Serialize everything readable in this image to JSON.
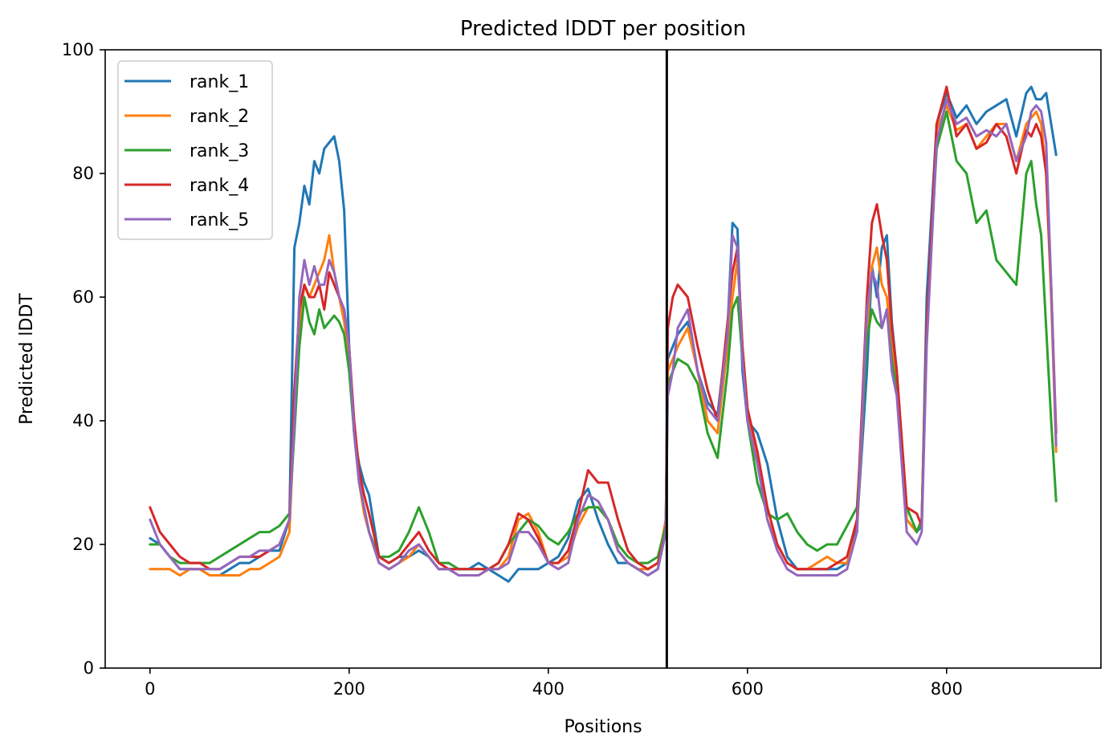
{
  "chart_data": {
    "type": "line",
    "title": "Predicted lDDT per position",
    "xlabel": "Positions",
    "ylabel": "Predicted lDDT",
    "xlim": [
      -45,
      955
    ],
    "ylim": [
      0,
      100
    ],
    "xticks": [
      0,
      200,
      400,
      600,
      800
    ],
    "yticks": [
      0,
      20,
      40,
      60,
      80,
      100
    ],
    "grid": false,
    "legend_position": "upper-left",
    "vertical_line_x": 519,
    "series": [
      {
        "name": "rank_1",
        "color": "#1f77b4",
        "x": [
          0,
          10,
          20,
          30,
          40,
          50,
          60,
          70,
          80,
          90,
          100,
          110,
          120,
          130,
          140,
          145,
          150,
          155,
          160,
          165,
          170,
          175,
          180,
          185,
          190,
          195,
          200,
          205,
          210,
          215,
          220,
          230,
          240,
          250,
          260,
          270,
          280,
          290,
          300,
          310,
          320,
          330,
          340,
          350,
          360,
          370,
          380,
          390,
          400,
          410,
          420,
          430,
          440,
          450,
          460,
          470,
          480,
          490,
          500,
          510,
          518,
          520,
          525,
          530,
          540,
          550,
          560,
          570,
          580,
          585,
          590,
          595,
          600,
          610,
          620,
          630,
          640,
          650,
          660,
          670,
          680,
          690,
          700,
          710,
          720,
          725,
          730,
          735,
          740,
          745,
          750,
          760,
          770,
          775,
          780,
          790,
          800,
          810,
          820,
          830,
          840,
          850,
          860,
          870,
          880,
          885,
          890,
          895,
          900,
          905,
          910
        ],
        "y": [
          21,
          20,
          18,
          16,
          16,
          16,
          15,
          15,
          16,
          17,
          17,
          18,
          19,
          19,
          24,
          68,
          72,
          78,
          75,
          82,
          80,
          84,
          85,
          86,
          82,
          74,
          52,
          38,
          33,
          30,
          28,
          18,
          17,
          18,
          18,
          19,
          18,
          16,
          16,
          16,
          16,
          17,
          16,
          15,
          14,
          16,
          16,
          16,
          17,
          18,
          21,
          27,
          29,
          24,
          20,
          17,
          17,
          16,
          15,
          16,
          22,
          50,
          52,
          54,
          56,
          48,
          43,
          41,
          55,
          72,
          71,
          48,
          40,
          38,
          33,
          24,
          18,
          16,
          16,
          16,
          16,
          16,
          17,
          23,
          48,
          65,
          60,
          68,
          70,
          56,
          48,
          24,
          22,
          23,
          60,
          88,
          93,
          89,
          91,
          88,
          90,
          91,
          92,
          86,
          93,
          94,
          92,
          92,
          93,
          88,
          83
        ]
      },
      {
        "name": "rank_2",
        "color": "#ff7f0e",
        "x": [
          0,
          10,
          20,
          30,
          40,
          50,
          60,
          70,
          80,
          90,
          100,
          110,
          120,
          130,
          140,
          145,
          150,
          155,
          160,
          165,
          170,
          175,
          180,
          185,
          190,
          195,
          200,
          205,
          210,
          215,
          220,
          230,
          240,
          250,
          260,
          270,
          280,
          290,
          300,
          310,
          320,
          330,
          340,
          350,
          360,
          370,
          380,
          390,
          400,
          410,
          420,
          430,
          440,
          450,
          460,
          470,
          480,
          490,
          500,
          510,
          518,
          520,
          525,
          530,
          540,
          550,
          560,
          570,
          580,
          585,
          590,
          595,
          600,
          610,
          620,
          630,
          640,
          650,
          660,
          670,
          680,
          690,
          700,
          710,
          720,
          725,
          730,
          735,
          740,
          745,
          750,
          760,
          770,
          775,
          780,
          790,
          800,
          810,
          820,
          830,
          840,
          850,
          860,
          870,
          880,
          885,
          890,
          895,
          900,
          905,
          910
        ],
        "y": [
          16,
          16,
          16,
          15,
          16,
          16,
          15,
          15,
          15,
          15,
          16,
          16,
          17,
          18,
          22,
          40,
          55,
          62,
          60,
          62,
          64,
          66,
          70,
          64,
          60,
          56,
          50,
          40,
          30,
          25,
          22,
          17,
          16,
          17,
          18,
          20,
          18,
          16,
          16,
          15,
          15,
          15,
          16,
          16,
          18,
          24,
          25,
          22,
          17,
          17,
          18,
          23,
          26,
          26,
          24,
          19,
          17,
          16,
          16,
          17,
          24,
          48,
          50,
          52,
          55,
          48,
          40,
          38,
          52,
          60,
          66,
          52,
          42,
          34,
          24,
          20,
          17,
          16,
          16,
          17,
          18,
          17,
          17,
          22,
          55,
          65,
          68,
          62,
          60,
          52,
          46,
          24,
          22,
          24,
          55,
          87,
          91,
          87,
          88,
          84,
          86,
          88,
          88,
          82,
          88,
          89,
          90,
          88,
          80,
          60,
          35
        ]
      },
      {
        "name": "rank_3",
        "color": "#2ca02c",
        "x": [
          0,
          10,
          20,
          30,
          40,
          50,
          60,
          70,
          80,
          90,
          100,
          110,
          120,
          130,
          140,
          145,
          150,
          155,
          160,
          165,
          170,
          175,
          180,
          185,
          190,
          195,
          200,
          205,
          210,
          215,
          220,
          230,
          240,
          250,
          260,
          270,
          280,
          290,
          300,
          310,
          320,
          330,
          340,
          350,
          360,
          370,
          380,
          390,
          400,
          410,
          420,
          430,
          440,
          450,
          460,
          470,
          480,
          490,
          500,
          510,
          518,
          520,
          525,
          530,
          540,
          550,
          560,
          570,
          580,
          585,
          590,
          595,
          600,
          610,
          620,
          630,
          640,
          650,
          660,
          670,
          680,
          690,
          700,
          710,
          720,
          725,
          730,
          735,
          740,
          745,
          750,
          760,
          770,
          775,
          780,
          790,
          800,
          810,
          820,
          830,
          840,
          850,
          860,
          870,
          880,
          885,
          890,
          895,
          900,
          905,
          910
        ],
        "y": [
          20,
          20,
          18,
          17,
          17,
          17,
          17,
          18,
          19,
          20,
          21,
          22,
          22,
          23,
          25,
          38,
          52,
          60,
          56,
          54,
          58,
          55,
          56,
          57,
          56,
          54,
          48,
          38,
          30,
          26,
          22,
          18,
          18,
          19,
          22,
          26,
          22,
          17,
          17,
          16,
          16,
          16,
          16,
          17,
          20,
          22,
          24,
          23,
          21,
          20,
          22,
          25,
          26,
          26,
          24,
          20,
          18,
          17,
          17,
          18,
          23,
          46,
          48,
          50,
          49,
          46,
          38,
          34,
          48,
          58,
          60,
          50,
          40,
          30,
          25,
          24,
          25,
          22,
          20,
          19,
          20,
          20,
          23,
          26,
          53,
          58,
          56,
          55,
          58,
          50,
          45,
          26,
          22,
          24,
          55,
          84,
          90,
          82,
          80,
          72,
          74,
          66,
          64,
          62,
          80,
          82,
          75,
          70,
          55,
          40,
          27
        ]
      },
      {
        "name": "rank_4",
        "color": "#d62728",
        "x": [
          0,
          10,
          20,
          30,
          40,
          50,
          60,
          70,
          80,
          90,
          100,
          110,
          120,
          130,
          140,
          145,
          150,
          155,
          160,
          165,
          170,
          175,
          180,
          185,
          190,
          195,
          200,
          205,
          210,
          215,
          220,
          230,
          240,
          250,
          260,
          270,
          280,
          290,
          300,
          310,
          320,
          330,
          340,
          350,
          360,
          370,
          380,
          390,
          400,
          410,
          420,
          430,
          440,
          450,
          460,
          470,
          480,
          490,
          500,
          510,
          518,
          520,
          525,
          530,
          540,
          550,
          560,
          570,
          580,
          585,
          590,
          595,
          600,
          610,
          620,
          630,
          640,
          650,
          660,
          670,
          680,
          690,
          700,
          710,
          720,
          725,
          730,
          735,
          740,
          745,
          750,
          760,
          770,
          775,
          780,
          790,
          800,
          810,
          820,
          830,
          840,
          850,
          860,
          870,
          880,
          885,
          890,
          895,
          900,
          905,
          910
        ],
        "y": [
          26,
          22,
          20,
          18,
          17,
          17,
          16,
          16,
          17,
          18,
          18,
          18,
          19,
          20,
          24,
          45,
          58,
          62,
          60,
          60,
          62,
          58,
          64,
          62,
          60,
          58,
          52,
          40,
          32,
          28,
          25,
          18,
          17,
          18,
          20,
          22,
          19,
          17,
          16,
          16,
          16,
          16,
          16,
          17,
          20,
          25,
          24,
          21,
          17,
          17,
          19,
          25,
          32,
          30,
          30,
          24,
          19,
          17,
          16,
          17,
          22,
          55,
          60,
          62,
          60,
          52,
          45,
          40,
          56,
          64,
          68,
          52,
          42,
          35,
          26,
          20,
          17,
          16,
          16,
          16,
          16,
          17,
          18,
          24,
          60,
          72,
          75,
          70,
          66,
          55,
          48,
          26,
          25,
          23,
          55,
          88,
          94,
          86,
          88,
          84,
          85,
          88,
          86,
          80,
          87,
          86,
          88,
          86,
          80,
          62,
          38
        ]
      },
      {
        "name": "rank_5",
        "color": "#9467bd",
        "x": [
          0,
          10,
          20,
          30,
          40,
          50,
          60,
          70,
          80,
          90,
          100,
          110,
          120,
          130,
          140,
          145,
          150,
          155,
          160,
          165,
          170,
          175,
          180,
          185,
          190,
          195,
          200,
          205,
          210,
          215,
          220,
          230,
          240,
          250,
          260,
          270,
          280,
          290,
          300,
          310,
          320,
          330,
          340,
          350,
          360,
          370,
          380,
          390,
          400,
          410,
          420,
          430,
          440,
          450,
          460,
          470,
          480,
          490,
          500,
          510,
          518,
          520,
          525,
          530,
          540,
          550,
          560,
          570,
          580,
          585,
          590,
          595,
          600,
          610,
          620,
          630,
          640,
          650,
          660,
          670,
          680,
          690,
          700,
          710,
          720,
          725,
          730,
          735,
          740,
          745,
          750,
          760,
          770,
          775,
          780,
          790,
          800,
          810,
          820,
          830,
          840,
          850,
          860,
          870,
          880,
          885,
          890,
          895,
          900,
          905,
          910
        ],
        "y": [
          24,
          20,
          18,
          16,
          16,
          16,
          16,
          16,
          17,
          18,
          18,
          19,
          19,
          20,
          24,
          40,
          60,
          66,
          62,
          65,
          62,
          62,
          66,
          64,
          60,
          58,
          52,
          38,
          30,
          26,
          22,
          17,
          16,
          17,
          19,
          20,
          18,
          16,
          16,
          15,
          15,
          15,
          16,
          16,
          17,
          22,
          22,
          20,
          17,
          16,
          17,
          24,
          28,
          27,
          24,
          19,
          17,
          16,
          15,
          16,
          22,
          44,
          48,
          55,
          58,
          48,
          42,
          40,
          54,
          70,
          68,
          50,
          40,
          33,
          24,
          19,
          16,
          15,
          15,
          15,
          15,
          15,
          16,
          22,
          58,
          64,
          62,
          55,
          58,
          48,
          44,
          22,
          20,
          22,
          52,
          85,
          92,
          88,
          89,
          86,
          87,
          86,
          88,
          82,
          86,
          90,
          91,
          90,
          85,
          62,
          36
        ]
      }
    ]
  }
}
